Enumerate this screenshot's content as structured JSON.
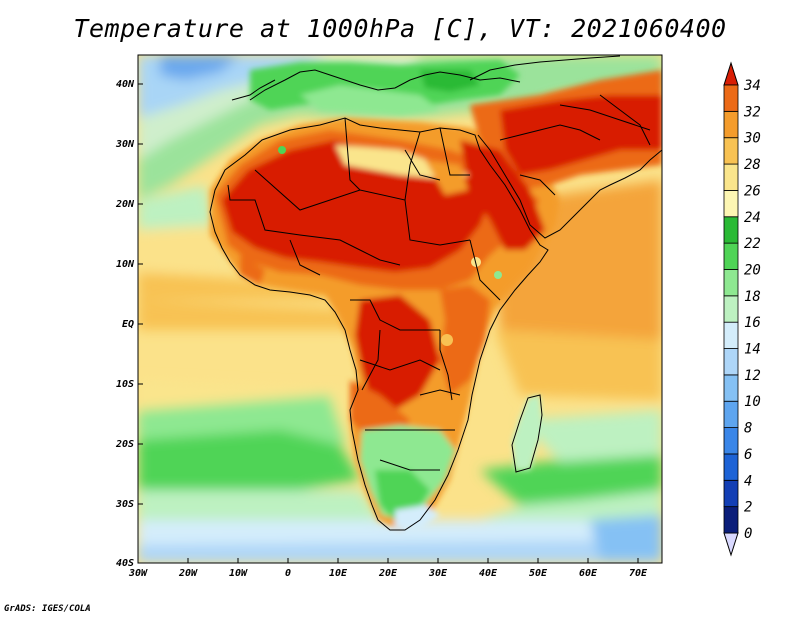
{
  "title": "Temperature at 1000hPa [C], VT: 2021060400",
  "credit": "GrADS: IGES/COLA",
  "lat_labels": [
    "40N",
    "30N",
    "20N",
    "10N",
    "EQ",
    "10S",
    "20S",
    "30S",
    "40S"
  ],
  "lon_labels": [
    "30W",
    "20W",
    "10W",
    "0",
    "10E",
    "20E",
    "30E",
    "40E",
    "50E",
    "60E",
    "70E"
  ],
  "colorbar": {
    "levels": [
      0,
      2,
      4,
      6,
      8,
      10,
      12,
      14,
      16,
      18,
      20,
      22,
      24,
      26,
      28,
      30,
      32,
      34
    ],
    "labels": [
      "0",
      "2",
      "4",
      "6",
      "8",
      "10",
      "12",
      "14",
      "16",
      "18",
      "20",
      "22",
      "24",
      "26",
      "28",
      "30",
      "32",
      "34"
    ],
    "colors": [
      "#0b1e7a",
      "#133fb5",
      "#1d63d6",
      "#3a86e8",
      "#5ea5ef",
      "#85c1f4",
      "#aed6f8",
      "#d4edfb",
      "#bdf1c1",
      "#8ee891",
      "#4fd456",
      "#2aba35",
      "#fdf6b3",
      "#fae58c",
      "#f8c253",
      "#f49c2c",
      "#ec6a17",
      "#e33a0e",
      "#d81e05"
    ]
  }
}
